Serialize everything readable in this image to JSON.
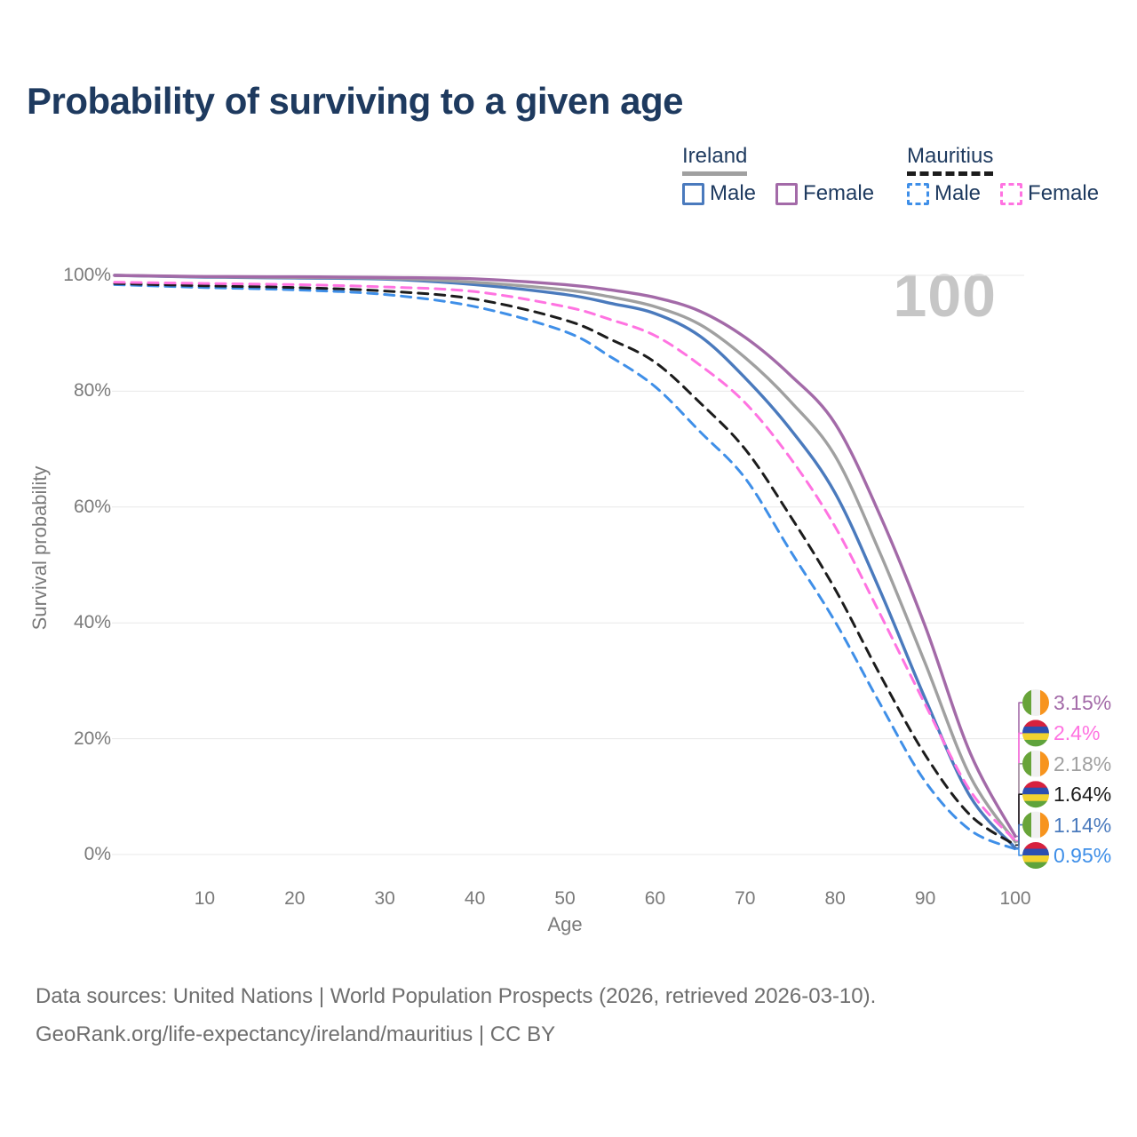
{
  "title": "Probability of surviving to a given age",
  "watermark_age": "100",
  "legend": {
    "groups": [
      {
        "label": "Ireland",
        "series_id": "ireland-all",
        "items": [
          {
            "label": "Male",
            "series_id": "ireland-male"
          },
          {
            "label": "Female",
            "series_id": "ireland-female"
          }
        ]
      },
      {
        "label": "Mauritius",
        "series_id": "mauritius-all",
        "items": [
          {
            "label": "Male",
            "series_id": "mauritius-male"
          },
          {
            "label": "Female",
            "series_id": "mauritius-female"
          }
        ]
      }
    ]
  },
  "footer": {
    "line1": "Data sources: United Nations | World Population Prospects (2026, retrieved 2026-03-10).",
    "line2": "GeoRank.org/life-expectancy/ireland/mauritius | CC BY"
  },
  "chart_data": {
    "type": "line",
    "title": "Probability of surviving to a given age",
    "xlabel": "Age",
    "ylabel": "Survival probability",
    "xlim": [
      0,
      100
    ],
    "ylim": [
      0,
      100
    ],
    "grid": "horizontal-only",
    "legend_position": "top-right",
    "x_ticks": [
      10,
      20,
      30,
      40,
      50,
      60,
      70,
      80,
      90,
      100
    ],
    "y_ticks": [
      {
        "value": 0,
        "label": "0%"
      },
      {
        "value": 20,
        "label": "20%"
      },
      {
        "value": 40,
        "label": "40%"
      },
      {
        "value": 60,
        "label": "60%"
      },
      {
        "value": 80,
        "label": "80%"
      },
      {
        "value": 100,
        "label": "100%"
      }
    ],
    "x": [
      0,
      10,
      20,
      30,
      40,
      50,
      55,
      60,
      65,
      70,
      75,
      80,
      85,
      90,
      95,
      100
    ],
    "series": [
      {
        "id": "ireland-female",
        "name": "Ireland Female",
        "country": "ireland",
        "style": "solid",
        "color": "#a36aa8",
        "end_label": "3.15%",
        "values": [
          100,
          99.8,
          99.75,
          99.65,
          99.4,
          98.4,
          97.5,
          96.2,
          93.8,
          89.3,
          82.8,
          74.4,
          58.5,
          39.4,
          17.5,
          3.15
        ]
      },
      {
        "id": "mauritius-female",
        "name": "Mauritius Female",
        "country": "mauritius",
        "style": "dashed",
        "color": "#ff73e1",
        "end_label": "2.4%",
        "values": [
          98.8,
          98.6,
          98.4,
          98.0,
          97.2,
          94.6,
          92.4,
          89.6,
          84.5,
          78.0,
          68.5,
          56.6,
          41.5,
          25.9,
          11.0,
          2.4
        ]
      },
      {
        "id": "ireland-all",
        "name": "Ireland",
        "country": "ireland",
        "style": "solid",
        "color": "#a0a0a0",
        "end_label": "2.18%",
        "values": [
          100,
          99.75,
          99.65,
          99.5,
          98.8,
          97.5,
          96.3,
          94.6,
          91.5,
          85.8,
          78.3,
          68.8,
          52.0,
          33.0,
          13.5,
          2.18
        ]
      },
      {
        "id": "mauritius-all",
        "name": "Mauritius",
        "country": "mauritius",
        "style": "dashed",
        "color": "#1c1c1c",
        "end_label": "1.64%",
        "values": [
          98.6,
          98.2,
          97.9,
          97.3,
          95.9,
          92.3,
          89.0,
          85.0,
          78.0,
          70.0,
          58.5,
          45.8,
          31.0,
          17.2,
          6.8,
          1.64
        ]
      },
      {
        "id": "ireland-male",
        "name": "Ireland Male",
        "country": "ireland",
        "style": "solid",
        "color": "#4a7abd",
        "end_label": "1.14%",
        "values": [
          100,
          99.7,
          99.55,
          99.35,
          98.4,
          96.7,
          95.2,
          93.4,
          89.5,
          82.3,
          73.5,
          62.4,
          45.5,
          26.9,
          10.0,
          1.14
        ]
      },
      {
        "id": "mauritius-male",
        "name": "Mauritius Male",
        "country": "mauritius",
        "style": "dashed",
        "color": "#3f8fe8",
        "end_label": "0.95%",
        "values": [
          98.4,
          97.9,
          97.5,
          96.7,
          94.6,
          90.3,
          86.0,
          80.8,
          73.0,
          65.0,
          52.5,
          40.2,
          26.0,
          12.6,
          4.2,
          0.95
        ]
      }
    ],
    "flag_colors": {
      "ireland": [
        "#68a439",
        "#f0f0f0",
        "#f7941e"
      ],
      "mauritius": [
        "#d6213e",
        "#2c4fb0",
        "#f2d230",
        "#5fa33c"
      ]
    }
  }
}
